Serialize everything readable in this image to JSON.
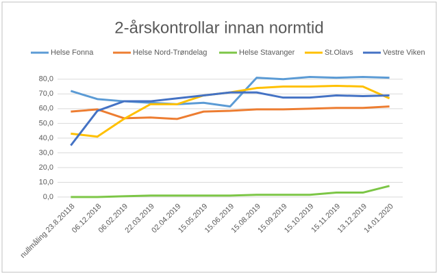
{
  "chart_data": {
    "type": "line",
    "title": "2-årskontrollar innan normtid",
    "categories": [
      "nullmåling 23.8.20118",
      "06.12.2018",
      "06.02.2019",
      "22.03.2019",
      "02.04.2019",
      "15.05.2019",
      "15.06.2019",
      "15.08.2019",
      "15.09.2019",
      "15.10.2019",
      "15.11.2019",
      "13.12.2019",
      "14.01.2020"
    ],
    "series": [
      {
        "name": "Helse Fonna",
        "color": "#5b9bd5",
        "values": [
          72,
          66.5,
          65,
          64,
          63,
          64,
          61.5,
          81,
          80,
          81.5,
          81,
          81.5,
          81
        ]
      },
      {
        "name": "Helse Nord-Trøndelag",
        "color": "#ed7d31",
        "values": [
          58,
          59.5,
          53.5,
          54,
          53,
          58,
          58.5,
          59.5,
          59.5,
          60,
          60.5,
          60.5,
          61.5
        ]
      },
      {
        "name": "Helse Stavanger",
        "color": "#7cc646",
        "values": [
          0,
          0,
          0.5,
          1,
          1,
          1,
          1,
          1.5,
          1.5,
          1.5,
          3,
          3,
          7.5
        ]
      },
      {
        "name": "St.Olavs",
        "color": "#ffc000",
        "values": [
          43,
          41,
          53,
          63,
          63,
          69,
          71,
          74,
          75,
          75,
          75.5,
          75,
          67
        ]
      },
      {
        "name": "Vestre Viken",
        "color": "#4472c4",
        "values": [
          35,
          58.5,
          65,
          65,
          67,
          69,
          71,
          71,
          67.5,
          67.5,
          69,
          68.5,
          69
        ]
      }
    ],
    "ylim": [
      0,
      85
    ],
    "yticks": [
      {
        "value": 0,
        "label": "0,0"
      },
      {
        "value": 10,
        "label": "10,0"
      },
      {
        "value": 20,
        "label": "20,0"
      },
      {
        "value": 30,
        "label": "30,0"
      },
      {
        "value": 40,
        "label": "40,0"
      },
      {
        "value": 50,
        "label": "50,0"
      },
      {
        "value": 60,
        "label": "60,0"
      },
      {
        "value": 70,
        "label": "70,0"
      },
      {
        "value": 80,
        "label": "80,0"
      }
    ],
    "grid": true
  }
}
